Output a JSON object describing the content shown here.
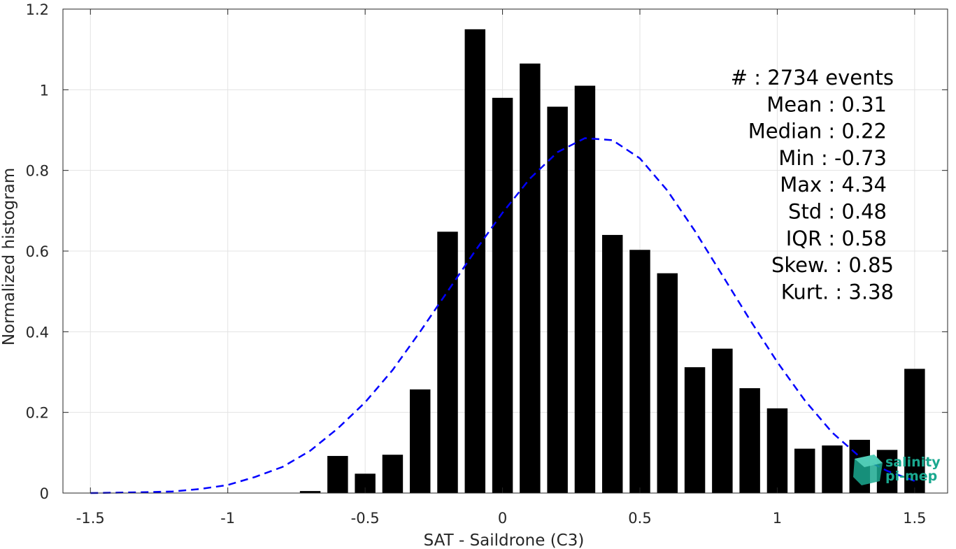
{
  "chart_data": {
    "type": "bar",
    "xlabel": "SAT - Saildrone (C3)",
    "ylabel": "Normalized histogram",
    "xlim": [
      -1.6,
      1.62
    ],
    "ylim": [
      0,
      1.2
    ],
    "xticks": [
      -1.5,
      -1,
      -0.5,
      0,
      0.5,
      1,
      1.5
    ],
    "xtick_labels": [
      "-1.5",
      "-1",
      "-0.5",
      "0",
      "0.5",
      "1",
      "1.5"
    ],
    "yticks": [
      0,
      0.2,
      0.4,
      0.6,
      0.8,
      1,
      1.2
    ],
    "ytick_labels": [
      "0",
      "0.2",
      "0.4",
      "0.6",
      "0.8",
      "1",
      "1.2"
    ],
    "grid": true,
    "bar_color": "#000000",
    "bar_width": 0.075,
    "bins": [
      -0.7,
      -0.6,
      -0.5,
      -0.4,
      -0.3,
      -0.2,
      -0.1,
      0.0,
      0.1,
      0.2,
      0.3,
      0.4,
      0.5,
      0.6,
      0.7,
      0.8,
      0.9,
      1.0,
      1.1,
      1.2,
      1.3,
      1.4,
      1.5
    ],
    "values": [
      0.005,
      0.092,
      0.048,
      0.095,
      0.257,
      0.648,
      1.15,
      0.98,
      1.065,
      0.958,
      1.01,
      0.64,
      0.603,
      0.545,
      0.312,
      0.358,
      0.26,
      0.21,
      0.11,
      0.118,
      0.132,
      0.107,
      0.308
    ],
    "fit_curve": {
      "style": "dashed",
      "color": "#0000ff",
      "x": [
        -1.5,
        -1.4,
        -1.3,
        -1.2,
        -1.1,
        -1.0,
        -0.9,
        -0.8,
        -0.7,
        -0.6,
        -0.5,
        -0.4,
        -0.3,
        -0.2,
        -0.1,
        0.0,
        0.1,
        0.2,
        0.3,
        0.4,
        0.5,
        0.6,
        0.7,
        0.8,
        0.9,
        1.0,
        1.1,
        1.2,
        1.3,
        1.4,
        1.5
      ],
      "y": [
        0.0,
        0.001,
        0.002,
        0.004,
        0.01,
        0.02,
        0.04,
        0.065,
        0.105,
        0.16,
        0.225,
        0.305,
        0.4,
        0.5,
        0.6,
        0.695,
        0.78,
        0.845,
        0.88,
        0.875,
        0.83,
        0.75,
        0.65,
        0.54,
        0.43,
        0.325,
        0.23,
        0.15,
        0.09,
        0.055,
        0.03
      ]
    },
    "stats": [
      "#  : 2734 events",
      "Mean : 0.31",
      "Median : 0.22",
      "Min : -0.73",
      "Max : 4.34",
      "Std : 0.48",
      "IQR : 0.58",
      "Skew. : 0.85",
      "Kurt. : 3.38"
    ],
    "logo": {
      "line1": "salinity",
      "line2": "pi-mep",
      "color": "#1aa88f"
    }
  }
}
